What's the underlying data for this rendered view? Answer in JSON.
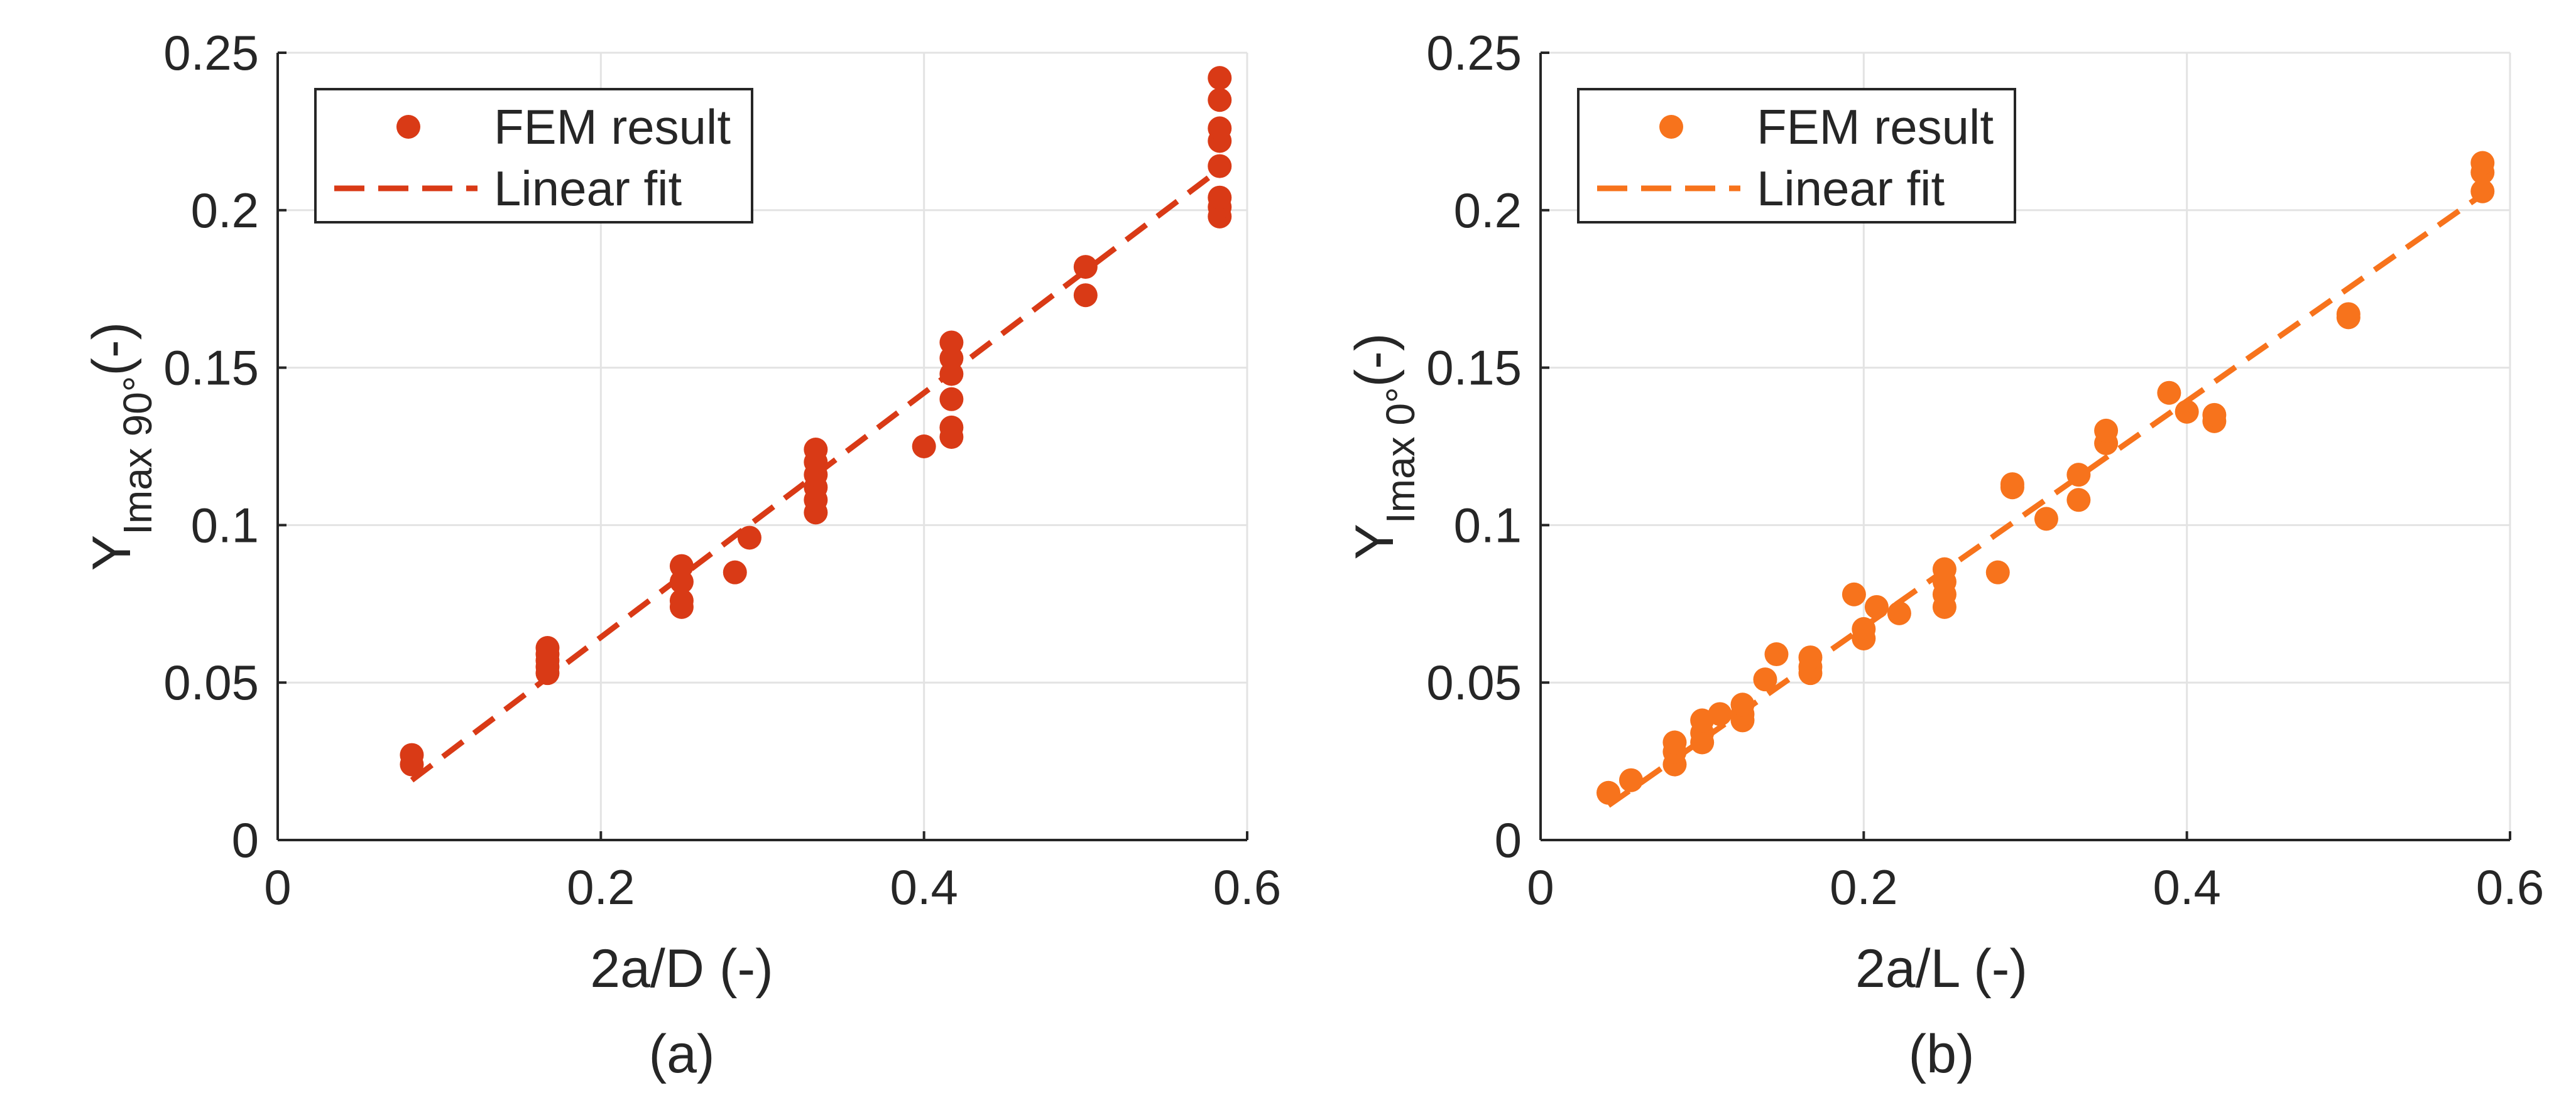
{
  "chart_data": [
    {
      "type": "scatter",
      "panel_label": "(a)",
      "xlabel": "2a/D (-)",
      "ylabel_main": "Y",
      "ylabel_sub": "Imax 90°",
      "ylabel_unit": "(-)",
      "xlim": [
        0,
        0.6
      ],
      "ylim": [
        0,
        0.25
      ],
      "xticks": [
        0,
        0.2,
        0.4,
        0.6
      ],
      "xtick_labels": [
        "0",
        "0.2",
        "0.4",
        "0.6"
      ],
      "yticks": [
        0,
        0.05,
        0.1,
        0.15,
        0.2,
        0.25
      ],
      "ytick_labels": [
        "0",
        "0.05",
        "0.1",
        "0.15",
        "0.2",
        "0.25"
      ],
      "grid": true,
      "legend_position": "top-left",
      "color": "#d93a16",
      "series": [
        {
          "name": "FEM result",
          "kind": "points",
          "points": [
            [
              0.083,
              0.024
            ],
            [
              0.083,
              0.027
            ],
            [
              0.167,
              0.053
            ],
            [
              0.167,
              0.055
            ],
            [
              0.167,
              0.057
            ],
            [
              0.167,
              0.059
            ],
            [
              0.167,
              0.061
            ],
            [
              0.25,
              0.074
            ],
            [
              0.25,
              0.076
            ],
            [
              0.25,
              0.082
            ],
            [
              0.25,
              0.087
            ],
            [
              0.283,
              0.085
            ],
            [
              0.292,
              0.096
            ],
            [
              0.333,
              0.104
            ],
            [
              0.333,
              0.108
            ],
            [
              0.333,
              0.112
            ],
            [
              0.333,
              0.116
            ],
            [
              0.333,
              0.12
            ],
            [
              0.333,
              0.124
            ],
            [
              0.4,
              0.125
            ],
            [
              0.417,
              0.128
            ],
            [
              0.417,
              0.131
            ],
            [
              0.417,
              0.14
            ],
            [
              0.417,
              0.148
            ],
            [
              0.417,
              0.153
            ],
            [
              0.417,
              0.158
            ],
            [
              0.5,
              0.173
            ],
            [
              0.5,
              0.182
            ],
            [
              0.583,
              0.198
            ],
            [
              0.583,
              0.201
            ],
            [
              0.583,
              0.204
            ],
            [
              0.583,
              0.214
            ],
            [
              0.583,
              0.222
            ],
            [
              0.583,
              0.226
            ],
            [
              0.583,
              0.235
            ],
            [
              0.583,
              0.242
            ]
          ]
        },
        {
          "name": "Linear fit",
          "kind": "line",
          "points": [
            [
              0.083,
              0.019
            ],
            [
              0.583,
              0.213
            ]
          ]
        }
      ]
    },
    {
      "type": "scatter",
      "panel_label": "(b)",
      "xlabel": "2a/L (-)",
      "ylabel_main": "Y",
      "ylabel_sub": "Imax 0°",
      "ylabel_unit": "(-)",
      "xlim": [
        0,
        0.6
      ],
      "ylim": [
        0,
        0.25
      ],
      "xticks": [
        0,
        0.2,
        0.4,
        0.6
      ],
      "xtick_labels": [
        "0",
        "0.2",
        "0.4",
        "0.6"
      ],
      "yticks": [
        0,
        0.05,
        0.1,
        0.15,
        0.2,
        0.25
      ],
      "ytick_labels": [
        "0",
        "0.05",
        "0.1",
        "0.15",
        "0.2",
        "0.25"
      ],
      "grid": true,
      "legend_position": "top-left",
      "color": "#f7731c",
      "series": [
        {
          "name": "FEM result",
          "kind": "points",
          "points": [
            [
              0.042,
              0.015
            ],
            [
              0.056,
              0.019
            ],
            [
              0.083,
              0.024
            ],
            [
              0.083,
              0.028
            ],
            [
              0.083,
              0.031
            ],
            [
              0.1,
              0.031
            ],
            [
              0.1,
              0.034
            ],
            [
              0.1,
              0.038
            ],
            [
              0.111,
              0.04
            ],
            [
              0.125,
              0.038
            ],
            [
              0.125,
              0.04
            ],
            [
              0.125,
              0.043
            ],
            [
              0.139,
              0.051
            ],
            [
              0.146,
              0.059
            ],
            [
              0.167,
              0.053
            ],
            [
              0.167,
              0.055
            ],
            [
              0.167,
              0.058
            ],
            [
              0.194,
              0.078
            ],
            [
              0.2,
              0.064
            ],
            [
              0.2,
              0.067
            ],
            [
              0.208,
              0.074
            ],
            [
              0.222,
              0.072
            ],
            [
              0.25,
              0.074
            ],
            [
              0.25,
              0.078
            ],
            [
              0.25,
              0.082
            ],
            [
              0.25,
              0.086
            ],
            [
              0.283,
              0.085
            ],
            [
              0.292,
              0.112
            ],
            [
              0.292,
              0.113
            ],
            [
              0.313,
              0.102
            ],
            [
              0.333,
              0.108
            ],
            [
              0.333,
              0.116
            ],
            [
              0.35,
              0.126
            ],
            [
              0.35,
              0.13
            ],
            [
              0.389,
              0.142
            ],
            [
              0.4,
              0.136
            ],
            [
              0.417,
              0.133
            ],
            [
              0.417,
              0.135
            ],
            [
              0.5,
              0.166
            ],
            [
              0.5,
              0.167
            ],
            [
              0.583,
              0.206
            ],
            [
              0.583,
              0.212
            ],
            [
              0.583,
              0.215
            ]
          ]
        },
        {
          "name": "Linear fit",
          "kind": "line",
          "points": [
            [
              0.042,
              0.011
            ],
            [
              0.583,
              0.205
            ]
          ]
        }
      ]
    }
  ]
}
